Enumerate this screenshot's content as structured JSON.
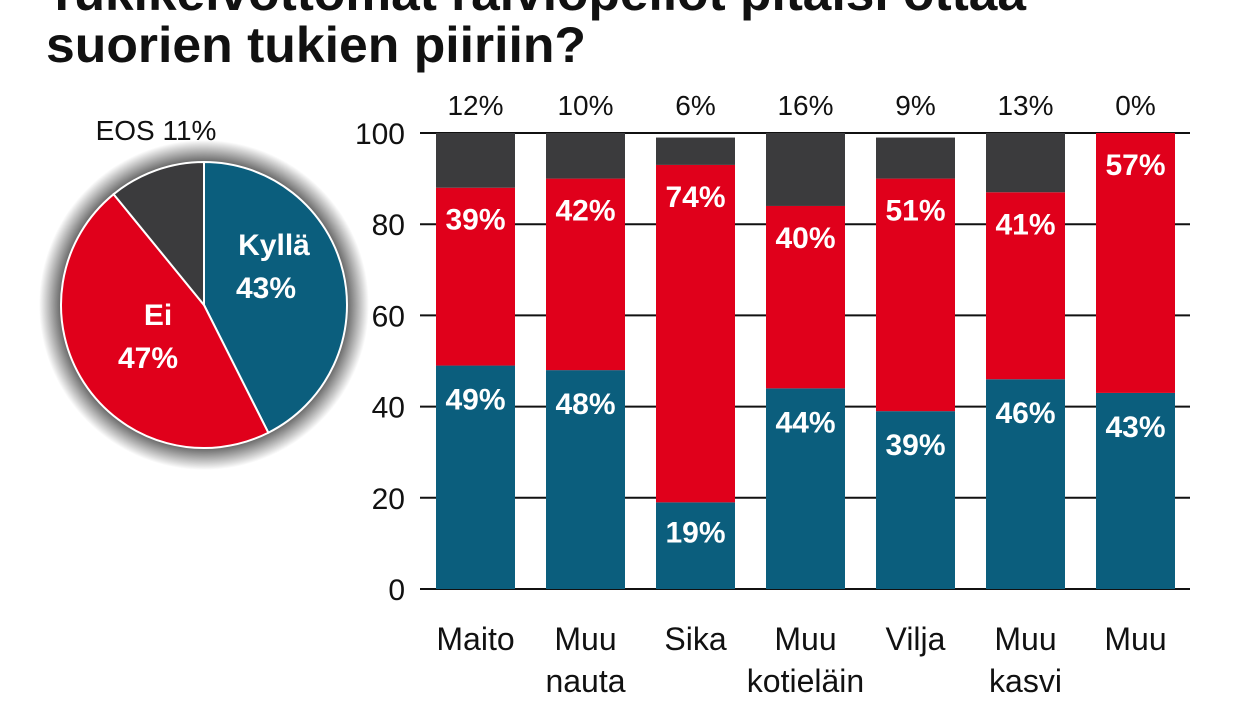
{
  "chart_data": [
    {
      "type": "pie",
      "slices": [
        {
          "name": "Kyllä",
          "value": 43,
          "label": "43%"
        },
        {
          "name": "Ei",
          "value": 47,
          "label": "47%"
        },
        {
          "name": "EOS",
          "value": 11,
          "label": "EOS 11%"
        }
      ],
      "colors": {
        "Kyllä": "#0b5e7d",
        "Ei": "#e0001b",
        "EOS": "#3b3b3d"
      }
    },
    {
      "type": "bar",
      "stacked": true,
      "title_line1": "Tukikelvottomat raiviopellot pitäisi ottaa",
      "title_line2": "suorien tukien piiriin?",
      "categories": [
        [
          "Maito"
        ],
        [
          "Muu",
          "nauta"
        ],
        [
          "Sika"
        ],
        [
          "Muu",
          "kotieläin"
        ],
        [
          "Vilja"
        ],
        [
          "Muu",
          "kasvi"
        ],
        [
          "Muu"
        ]
      ],
      "series": [
        {
          "key": "kylla",
          "values": [
            49,
            48,
            19,
            44,
            39,
            46,
            43
          ],
          "color": "#0b5e7d"
        },
        {
          "key": "ei",
          "values": [
            39,
            42,
            74,
            40,
            51,
            41,
            57
          ],
          "color": "#e0001b"
        },
        {
          "key": "eos",
          "values": [
            12,
            10,
            6,
            16,
            9,
            13,
            0
          ],
          "color": "#3b3b3d"
        }
      ],
      "ylim": [
        0,
        100
      ],
      "yticks": [
        0,
        20,
        40,
        60,
        80,
        100
      ],
      "grid": true
    }
  ]
}
